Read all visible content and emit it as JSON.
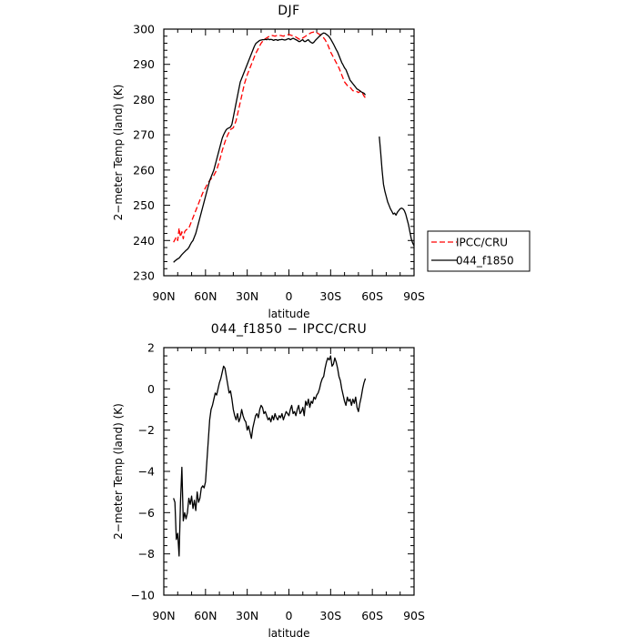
{
  "chart_data": [
    {
      "type": "line",
      "title": "DJF",
      "xlabel": "latitude",
      "ylabel": "2−meter Temp (land) (K)",
      "xlim": [
        90,
        -90
      ],
      "ylim": [
        230,
        300
      ],
      "x_tick_values": [
        90,
        60,
        30,
        0,
        -30,
        -60,
        -90
      ],
      "x_tick_labels": [
        "90N",
        "60N",
        "30N",
        "0",
        "30S",
        "60S",
        "90S"
      ],
      "y_tick_values": [
        230,
        240,
        250,
        260,
        270,
        280,
        290,
        300
      ],
      "y_tick_labels": [
        "230",
        "240",
        "250",
        "260",
        "270",
        "280",
        "290",
        "300"
      ],
      "legend": "right",
      "series": [
        {
          "name": "IPCC/CRU",
          "color": "#ff0000",
          "dash": true,
          "x": [
            83,
            81,
            80,
            79,
            78,
            77,
            76,
            75,
            74,
            72,
            70,
            68,
            66,
            64,
            62,
            60,
            58,
            56,
            54,
            52,
            50,
            48,
            46,
            44,
            42,
            40,
            38,
            36,
            34,
            32,
            30,
            28,
            26,
            24,
            22,
            20,
            18,
            16,
            14,
            12,
            10,
            8,
            6,
            4,
            2,
            0,
            -2,
            -4,
            -6,
            -8,
            -10,
            -12,
            -14,
            -16,
            -18,
            -20,
            -22,
            -24,
            -26,
            -28,
            -30,
            -32,
            -34,
            -36,
            -38,
            -40,
            -42,
            -44,
            -46,
            -48,
            -50,
            -52,
            -54,
            -55
          ],
          "y": [
            239.5,
            241.0,
            240.0,
            243.5,
            241.0,
            242.5,
            240.5,
            242.5,
            243.0,
            243.5,
            245.5,
            247.5,
            249.5,
            251.5,
            253.5,
            255.0,
            256.5,
            257.5,
            258.5,
            260.0,
            262.5,
            265.5,
            268.0,
            270.0,
            271.5,
            272.0,
            274.0,
            277.5,
            281.0,
            284.5,
            287.0,
            289.0,
            291.0,
            293.0,
            294.5,
            296.0,
            297.0,
            297.5,
            298.0,
            298.2,
            298.0,
            298.3,
            298.2,
            298.0,
            298.3,
            298.5,
            298.2,
            298.0,
            297.5,
            297.0,
            297.5,
            298.0,
            298.5,
            299.0,
            299.2,
            299.0,
            298.5,
            298.0,
            297.0,
            295.5,
            293.5,
            292.0,
            290.5,
            289.0,
            287.0,
            285.0,
            284.0,
            283.5,
            282.5,
            282.5,
            282.0,
            282.5,
            281.0,
            280.5
          ]
        },
        {
          "name": "044_f1850",
          "color": "#000000",
          "dash": false,
          "segments": [
            {
              "x": [
                83,
                82,
                81,
                80,
                79,
                78,
                77,
                76,
                75,
                74,
                73,
                72,
                71,
                70,
                69,
                68,
                67,
                66,
                65,
                64,
                63,
                62,
                61,
                60,
                59,
                58,
                57,
                56,
                55,
                54,
                53,
                52,
                51,
                50,
                49,
                48,
                47,
                46,
                45,
                44,
                43,
                42,
                41,
                40,
                39,
                38,
                37,
                36,
                35,
                34,
                33,
                32,
                31,
                30,
                29,
                28,
                27,
                26,
                25,
                24,
                23,
                22,
                21,
                20,
                19,
                18,
                17,
                16,
                15,
                14,
                13,
                12,
                11,
                10,
                9,
                8,
                7,
                6,
                5,
                4,
                3,
                2,
                1,
                0,
                -1,
                -2,
                -3,
                -4,
                -5,
                -6,
                -7,
                -8,
                -9,
                -10,
                -11,
                -12,
                -13,
                -14,
                -15,
                -16,
                -17,
                -18,
                -19,
                -20,
                -21,
                -22,
                -23,
                -24,
                -25,
                -26,
                -27,
                -28,
                -29,
                -30,
                -31,
                -32,
                -33,
                -34,
                -35,
                -36,
                -37,
                -38,
                -39,
                -40,
                -41,
                -42,
                -43,
                -44,
                -45,
                -46,
                -47,
                -48,
                -49,
                -50,
                -51,
                -52,
                -53,
                -54,
                -55
              ],
              "y": [
                233.8,
                234.2,
                234.5,
                234.8,
                235.0,
                235.5,
                236.0,
                236.4,
                236.8,
                237.2,
                237.5,
                238.0,
                238.8,
                239.5,
                240.0,
                241.0,
                242.0,
                243.5,
                245.0,
                246.5,
                248.0,
                249.5,
                251.0,
                252.5,
                254.0,
                255.5,
                257.0,
                258.0,
                259.0,
                260.0,
                261.5,
                263.0,
                264.5,
                266.0,
                267.5,
                269.0,
                270.0,
                270.8,
                271.5,
                271.8,
                272.0,
                272.2,
                273.0,
                275.0,
                277.0,
                279.0,
                281.0,
                283.0,
                285.0,
                286.0,
                287.0,
                288.0,
                289.0,
                290.0,
                291.0,
                292.0,
                293.0,
                294.0,
                295.0,
                295.8,
                296.2,
                296.5,
                296.8,
                296.9,
                297.0,
                297.0,
                297.1,
                297.0,
                297.2,
                297.0,
                297.1,
                297.0,
                296.8,
                297.0,
                297.0,
                296.8,
                297.0,
                297.0,
                297.1,
                297.0,
                296.9,
                297.0,
                297.2,
                297.3,
                297.0,
                297.2,
                297.4,
                297.2,
                297.0,
                296.8,
                296.5,
                296.5,
                296.8,
                297.0,
                296.5,
                296.5,
                296.8,
                297.0,
                296.5,
                296.2,
                296.0,
                296.3,
                296.8,
                297.2,
                297.6,
                298.0,
                298.4,
                298.7,
                298.9,
                298.8,
                298.5,
                298.2,
                297.8,
                297.2,
                296.5,
                295.8,
                295.0,
                294.2,
                293.5,
                292.5,
                291.5,
                290.5,
                289.8,
                289.0,
                288.5,
                287.5,
                286.5,
                285.5,
                285.0,
                284.5,
                284.0,
                283.5,
                283.0,
                282.8,
                282.5,
                282.2,
                282.0,
                281.8,
                281.3
              ]
            },
            {
              "x": [
                -65,
                -66,
                -67,
                -68,
                -69,
                -70,
                -71,
                -72,
                -73,
                -74,
                -75,
                -76,
                -77,
                -78,
                -79,
                -80,
                -81,
                -82,
                -83,
                -84,
                -85,
                -86,
                -87,
                -88,
                -89,
                -90
              ],
              "y": [
                269.5,
                265.0,
                260.0,
                256.0,
                254.0,
                252.5,
                251.0,
                250.0,
                249.0,
                248.3,
                247.5,
                247.8,
                247.2,
                248.0,
                248.5,
                249.0,
                249.2,
                249.0,
                248.5,
                247.5,
                246.0,
                244.5,
                242.5,
                240.5,
                239.3,
                238.5
              ]
            }
          ]
        }
      ]
    },
    {
      "type": "line",
      "title": "044_f1850 − IPCC/CRU",
      "xlabel": "latitude",
      "ylabel": "2−meter Temp (land) (K)",
      "xlim": [
        90,
        -90
      ],
      "ylim": [
        -10,
        2
      ],
      "x_tick_values": [
        90,
        60,
        30,
        0,
        -30,
        -60,
        -90
      ],
      "x_tick_labels": [
        "90N",
        "60N",
        "30N",
        "0",
        "30S",
        "60S",
        "90S"
      ],
      "y_tick_values": [
        -10,
        -8,
        -6,
        -4,
        -2,
        0,
        2
      ],
      "y_tick_labels": [
        "−10",
        "−8",
        "−6",
        "−4",
        "−2",
        "0",
        "2"
      ],
      "series": [
        {
          "color": "#000000",
          "x": [
            83,
            82,
            81,
            80,
            79,
            78,
            77,
            76,
            75,
            74,
            73,
            72,
            71,
            70,
            69,
            68,
            67,
            66,
            65,
            64,
            63,
            62,
            61,
            60,
            59,
            58,
            57,
            56,
            55,
            54,
            53,
            52,
            51,
            50,
            49,
            48,
            47,
            46,
            45,
            44,
            43,
            42,
            41,
            40,
            39,
            38,
            37,
            36,
            35,
            34,
            33,
            32,
            31,
            30,
            29,
            28,
            27,
            26,
            25,
            24,
            23,
            22,
            21,
            20,
            19,
            18,
            17,
            16,
            15,
            14,
            13,
            12,
            11,
            10,
            9,
            8,
            7,
            6,
            5,
            4,
            3,
            2,
            1,
            0,
            -1,
            -2,
            -3,
            -4,
            -5,
            -6,
            -7,
            -8,
            -9,
            -10,
            -11,
            -12,
            -13,
            -14,
            -15,
            -16,
            -17,
            -18,
            -19,
            -20,
            -21,
            -22,
            -23,
            -24,
            -25,
            -26,
            -27,
            -28,
            -29,
            -30,
            -31,
            -32,
            -33,
            -34,
            -35,
            -36,
            -37,
            -38,
            -39,
            -40,
            -41,
            -42,
            -43,
            -44,
            -45,
            -46,
            -47,
            -48,
            -49,
            -50,
            -51,
            -52,
            -53,
            -54,
            -55
          ],
          "y": [
            -5.3,
            -5.5,
            -7.3,
            -7.0,
            -8.1,
            -5.5,
            -3.8,
            -6.4,
            -6.0,
            -6.3,
            -6.0,
            -5.3,
            -5.6,
            -5.2,
            -5.8,
            -5.4,
            -5.9,
            -5.0,
            -5.5,
            -5.3,
            -4.8,
            -4.7,
            -4.8,
            -4.5,
            -3.5,
            -2.5,
            -1.5,
            -1.0,
            -0.8,
            -0.5,
            -0.2,
            -0.3,
            0.0,
            0.3,
            0.5,
            0.8,
            1.1,
            1.0,
            0.6,
            0.2,
            -0.2,
            -0.1,
            -0.5,
            -1.0,
            -1.3,
            -1.5,
            -1.2,
            -1.6,
            -1.4,
            -1.0,
            -1.3,
            -1.5,
            -1.6,
            -2.0,
            -1.8,
            -2.1,
            -2.4,
            -1.9,
            -1.6,
            -1.3,
            -1.2,
            -1.4,
            -1.0,
            -0.8,
            -0.9,
            -1.2,
            -1.1,
            -1.3,
            -1.5,
            -1.4,
            -1.6,
            -1.3,
            -1.5,
            -1.2,
            -1.4,
            -1.5,
            -1.3,
            -1.4,
            -1.2,
            -1.5,
            -1.3,
            -1.1,
            -1.2,
            -1.3,
            -1.0,
            -0.8,
            -1.2,
            -1.1,
            -1.3,
            -1.0,
            -0.8,
            -1.2,
            -1.1,
            -0.9,
            -1.3,
            -0.6,
            -0.8,
            -0.5,
            -0.9,
            -0.6,
            -0.7,
            -0.4,
            -0.5,
            -0.3,
            -0.2,
            0.0,
            0.3,
            0.5,
            0.6,
            1.0,
            1.3,
            1.5,
            1.4,
            1.6,
            1.1,
            1.2,
            1.5,
            1.3,
            1.0,
            0.6,
            0.4,
            0.0,
            -0.3,
            -0.6,
            -0.8,
            -0.4,
            -0.6,
            -0.5,
            -0.8,
            -0.5,
            -0.7,
            -0.4,
            -0.9,
            -1.1,
            -0.7,
            -0.4,
            0.0,
            0.3,
            0.5
          ]
        }
      ]
    }
  ]
}
